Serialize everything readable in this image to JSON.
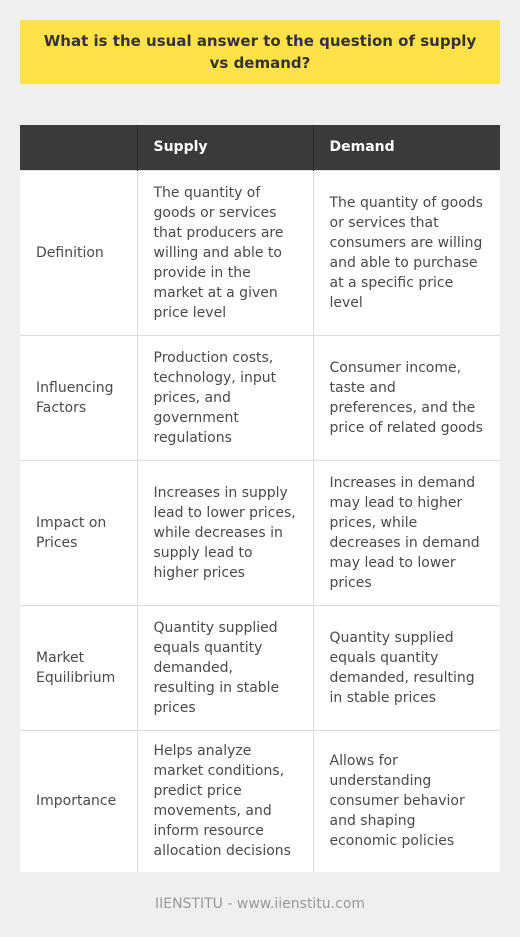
{
  "title": "What is the usual answer to the question of supply vs demand?",
  "table": {
    "headers": [
      "",
      "Supply",
      "Demand"
    ],
    "rows": [
      {
        "label": "Definition",
        "supply": "The quantity of goods or services that producers are willing and able to provide in the market at a given price level",
        "demand": "The quantity of goods or services that consumers are willing and able to purchase at a specific price level"
      },
      {
        "label": "Influencing Factors",
        "supply": "Production costs, technology, input prices, and government regulations",
        "demand": "Consumer income, taste and preferences, and the price of related goods"
      },
      {
        "label": "Impact on Prices",
        "supply": "Increases in supply lead to lower prices, while decreases in supply lead to higher prices",
        "demand": "Increases in demand may lead to higher prices, while decreases in demand may lead to lower prices"
      },
      {
        "label": "Market Equilibrium",
        "supply": "Quantity supplied equals quantity demanded, resulting in stable prices",
        "demand": "Quantity supplied equals quantity demanded, resulting in stable prices"
      },
      {
        "label": "Importance",
        "supply": "Helps analyze market conditions, predict price movements, and inform resource allocation decisions",
        "demand": "Allows for understanding consumer behavior and shaping economic policies"
      }
    ]
  },
  "footer": "IIENSTITU - www.iienstitu.com",
  "colors": {
    "title_background": "#ffe14a",
    "header_background": "#3a3a3a",
    "page_background": "#efefef",
    "cell_background": "#ffffff"
  }
}
